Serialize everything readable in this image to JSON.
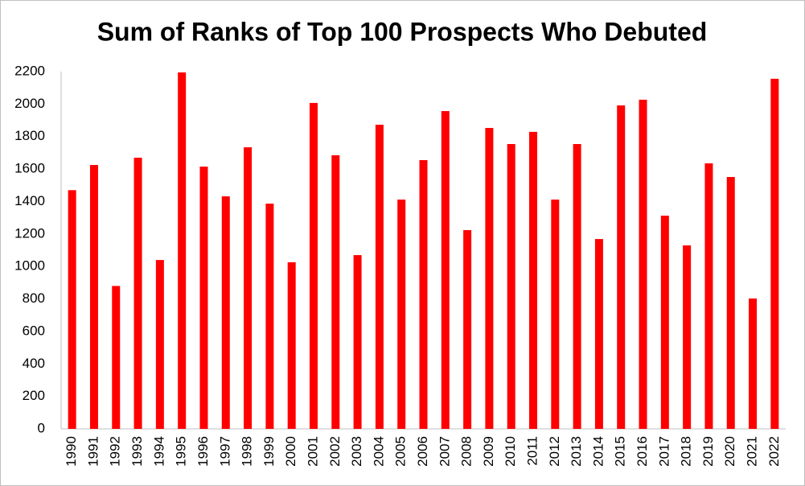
{
  "chart_data": {
    "type": "bar",
    "title": "Sum of Ranks of Top 100 Prospects Who Debuted",
    "categories": [
      "1990",
      "1991",
      "1992",
      "1993",
      "1994",
      "1995",
      "1996",
      "1997",
      "1998",
      "1999",
      "2000",
      "2001",
      "2002",
      "2003",
      "2004",
      "2005",
      "2006",
      "2007",
      "2008",
      "2009",
      "2010",
      "2011",
      "2012",
      "2013",
      "2014",
      "2015",
      "2016",
      "2017",
      "2018",
      "2019",
      "2020",
      "2021",
      "2022"
    ],
    "values": [
      1470,
      1625,
      880,
      1670,
      1040,
      2195,
      1615,
      1432,
      1734,
      1387,
      1026,
      2007,
      1685,
      1070,
      1873,
      1412,
      1655,
      1957,
      1224,
      1853,
      1754,
      1829,
      1412,
      1754,
      1169,
      1992,
      2027,
      1313,
      1130,
      1635,
      1551,
      803,
      2156
    ],
    "color": "#ff0000",
    "ylim": [
      0,
      2200
    ],
    "yticks": [
      0,
      200,
      400,
      600,
      800,
      1000,
      1200,
      1400,
      1600,
      1800,
      2000,
      2200
    ],
    "grid": false
  }
}
